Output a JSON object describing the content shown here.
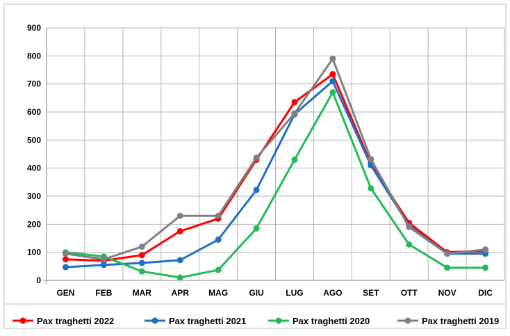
{
  "chart_data": {
    "type": "line",
    "title": "",
    "xlabel": "",
    "ylabel": "",
    "categories": [
      "GEN",
      "FEB",
      "MAR",
      "APR",
      "MAG",
      "GIU",
      "LUG",
      "AGO",
      "SET",
      "OTT",
      "NOV",
      "DIC"
    ],
    "ylim": [
      0,
      900
    ],
    "yticks": [
      0,
      100,
      200,
      300,
      400,
      500,
      600,
      700,
      800,
      900
    ],
    "grid": true,
    "legend_position": "bottom",
    "series": [
      {
        "name": "Pax traghetti 2022",
        "color": "#ff0000",
        "values": [
          75,
          70,
          90,
          175,
          220,
          430,
          635,
          735,
          415,
          205,
          100,
          105
        ]
      },
      {
        "name": "Pax traghetti 2021",
        "color": "#1f6fc5",
        "values": [
          47,
          55,
          62,
          72,
          145,
          322,
          592,
          710,
          410,
          195,
          95,
          95
        ]
      },
      {
        "name": "Pax traghetti 2020",
        "color": "#22bb55",
        "values": [
          100,
          85,
          32,
          10,
          37,
          185,
          430,
          670,
          328,
          128,
          45,
          45
        ]
      },
      {
        "name": "Pax traghetti 2019",
        "color": "#808080",
        "values": [
          95,
          75,
          120,
          230,
          230,
          437,
          595,
          790,
          432,
          190,
          95,
          110
        ]
      }
    ]
  }
}
